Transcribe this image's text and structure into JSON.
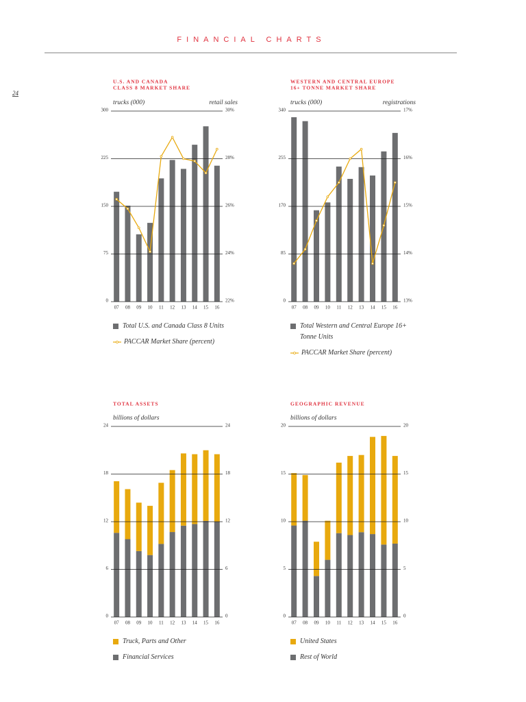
{
  "header": {
    "title": "FINANCIAL CHARTS",
    "page_number": "24"
  },
  "chart_data": [
    {
      "type": "combo",
      "title": [
        "U.S. AND CANADA",
        "CLASS 8 MARKET SHARE"
      ],
      "y_label": "trucks (000)",
      "y2_label": "retail sales",
      "categories": [
        "07",
        "08",
        "09",
        "10",
        "11",
        "12",
        "13",
        "14",
        "15",
        "16"
      ],
      "series": [
        {
          "name": "Total U.S. and Canada Class 8 Units",
          "color": "#6d6e70",
          "axis": "y",
          "kind": "bar",
          "values": [
            173,
            151,
            106,
            124,
            194,
            223,
            209,
            247,
            276,
            214
          ]
        },
        {
          "name": "PACCAR Market Share (percent)",
          "color": "#e8a90e",
          "axis": "y2",
          "kind": "line",
          "values": [
            26.3,
            25.9,
            25.1,
            24.1,
            28.1,
            28.9,
            28.0,
            27.9,
            27.4,
            28.4
          ]
        }
      ],
      "ylim": [
        0,
        300
      ],
      "yticks": [
        0,
        75,
        150,
        225,
        300
      ],
      "y2lim": [
        22,
        30
      ],
      "y2ticks": [
        {
          "value": 22,
          "label": "22%"
        },
        {
          "value": 24,
          "label": "24%"
        },
        {
          "value": 26,
          "label": "26%"
        },
        {
          "value": 28,
          "label": "28%"
        },
        {
          "value": 30,
          "label": "30%"
        }
      ],
      "grid": true
    },
    {
      "type": "combo",
      "title": [
        "WESTERN AND CENTRAL EUROPE",
        "16+ TONNE MARKET SHARE"
      ],
      "y_label": "trucks (000)",
      "y2_label": "registrations",
      "categories": [
        "07",
        "08",
        "09",
        "10",
        "11",
        "12",
        "13",
        "14",
        "15",
        "16"
      ],
      "series": [
        {
          "name": "Total Western and Central Europe 16+ Tonne Units",
          "color": "#6d6e70",
          "axis": "y",
          "kind": "bar",
          "values": [
            329,
            322,
            163,
            177,
            241,
            219,
            240,
            225,
            268,
            301
          ]
        },
        {
          "name": "PACCAR Market Share (percent)",
          "color": "#e8a90e",
          "axis": "y2",
          "kind": "line",
          "values": [
            13.8,
            14.1,
            14.7,
            15.2,
            15.5,
            16.0,
            16.2,
            13.8,
            14.6,
            15.5
          ]
        }
      ],
      "ylim": [
        0,
        340
      ],
      "yticks": [
        0,
        85,
        170,
        255,
        340
      ],
      "y2lim": [
        13,
        17
      ],
      "y2ticks": [
        {
          "value": 13,
          "label": "13%"
        },
        {
          "value": 14,
          "label": "14%"
        },
        {
          "value": 15,
          "label": "15%"
        },
        {
          "value": 16,
          "label": "16%"
        },
        {
          "value": 17,
          "label": "17%"
        }
      ],
      "grid": true
    },
    {
      "type": "stacked",
      "title": [
        "TOTAL ASSETS"
      ],
      "y_label": "billions of dollars",
      "categories": [
        "07",
        "08",
        "09",
        "10",
        "11",
        "12",
        "13",
        "14",
        "15",
        "16"
      ],
      "series": [
        {
          "name": "Financial Services",
          "color": "#6d6e70",
          "values": [
            10.6,
            9.8,
            8.3,
            7.8,
            9.2,
            10.7,
            11.5,
            11.7,
            12.1,
            12.0
          ]
        },
        {
          "name": "Truck, Parts and Other",
          "color": "#e8a90e",
          "values": [
            6.5,
            6.3,
            6.1,
            6.2,
            7.7,
            7.8,
            9.1,
            8.8,
            8.9,
            8.5
          ]
        }
      ],
      "ylim": [
        0,
        24
      ],
      "yticks": [
        0,
        6,
        12,
        18,
        24
      ],
      "mirror_ticks": true,
      "grid": true
    },
    {
      "type": "stacked",
      "title": [
        "GEOGRAPHIC REVENUE"
      ],
      "y_label": "billions of dollars",
      "categories": [
        "07",
        "08",
        "09",
        "10",
        "11",
        "12",
        "13",
        "14",
        "15",
        "16"
      ],
      "series": [
        {
          "name": "Rest of World",
          "color": "#6d6e70",
          "values": [
            9.6,
            10.1,
            4.3,
            6.0,
            8.8,
            8.6,
            8.9,
            8.7,
            7.6,
            7.7
          ]
        },
        {
          "name": "United States",
          "color": "#e8a90e",
          "values": [
            5.5,
            4.8,
            3.6,
            4.1,
            7.4,
            8.3,
            8.1,
            10.2,
            11.4,
            9.2
          ]
        }
      ],
      "ylim": [
        0,
        20
      ],
      "yticks": [
        0,
        5,
        10,
        15,
        20
      ],
      "mirror_ticks": true,
      "grid": true
    }
  ]
}
